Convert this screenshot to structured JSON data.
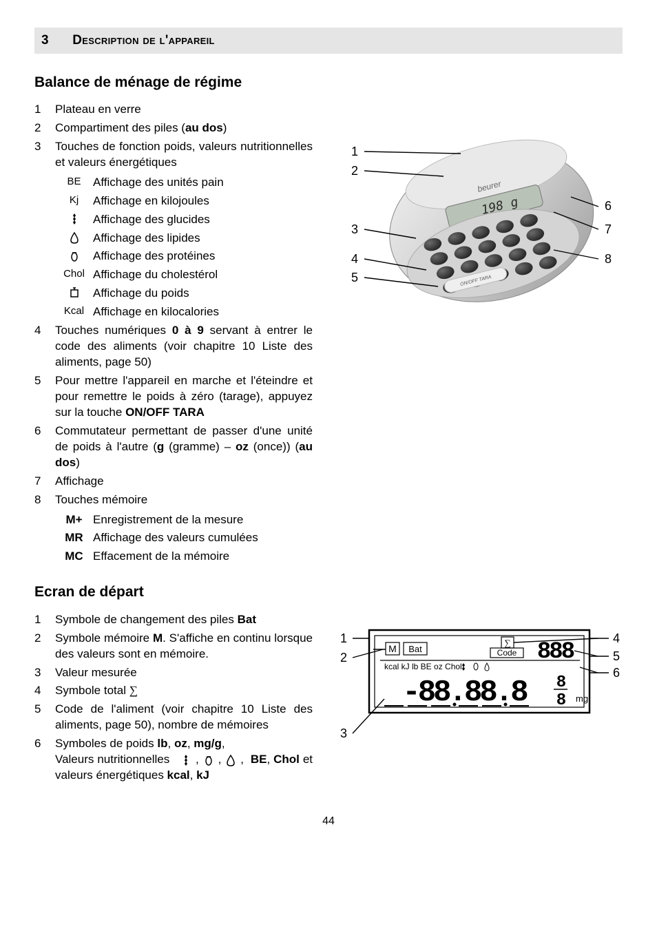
{
  "section": {
    "number": "3",
    "title": "Description de l'appareil"
  },
  "h1": "Balance de ménage de régime",
  "items": [
    {
      "n": "1",
      "text": "Plateau en verre"
    },
    {
      "n": "2",
      "text_html": "Compartiment des piles (<b>au dos</b>)"
    },
    {
      "n": "3",
      "text": "Touches de fonction poids, valeurs nutritionnelles et valeurs énergétiques",
      "sub": [
        {
          "k": "BE",
          "type": "txt",
          "v": "Affichage des unités pain"
        },
        {
          "k": "Kj",
          "type": "txt",
          "v": "Affichage en kilojoules"
        },
        {
          "k": "wheat",
          "type": "ico",
          "v": "Affichage des glucides"
        },
        {
          "k": "drop",
          "type": "ico",
          "v": "Affichage des lipides"
        },
        {
          "k": "oval",
          "type": "ico",
          "v": "Affichage des protéines"
        },
        {
          "k": "Chol",
          "type": "txt",
          "v": "Affichage du cholestérol"
        },
        {
          "k": "scale",
          "type": "ico",
          "v": "Affichage du poids"
        },
        {
          "k": "Kcal",
          "type": "txt",
          "v": "Affichage en kilocalories"
        }
      ]
    },
    {
      "n": "4",
      "text_html": "Touches numériques <b>0 à 9</b> servant à entrer le code des aliments (voir chapitre 10 Liste des aliments, page 50)"
    },
    {
      "n": "5",
      "text_html": "Pour mettre l'appareil en marche et l'éteindre et pour remettre le poids à zéro (tarage), appuyez sur la touche <b>ON/OFF TARA</b>"
    },
    {
      "n": "6",
      "text_html": "Commutateur permettant de passer d'une unité de poids à l'autre (<b>g</b> (gramme) – <b>oz</b> (once)) (<b>au dos</b>)"
    },
    {
      "n": "7",
      "text": "Affichage"
    },
    {
      "n": "8",
      "text": "Touches mémoire",
      "sub": [
        {
          "k": "M+",
          "type": "bold",
          "v": "Enregistrement de la mesure"
        },
        {
          "k": "MR",
          "type": "bold",
          "v": "Affichage des valeurs cumulées"
        },
        {
          "k": "MC",
          "type": "bold",
          "v": "Effacement de la mémoire"
        }
      ]
    }
  ],
  "h2": "Ecran de départ",
  "items2": [
    {
      "n": "1",
      "text_html": "Symbole de changement des piles <b>Bat</b>"
    },
    {
      "n": "2",
      "text_html": "Symbole mémoire <b>M</b>. S'affiche en continu lorsque des valeurs sont en mémoire."
    },
    {
      "n": "3",
      "text": "Valeur mesurée"
    },
    {
      "n": "4",
      "text_html": "Symbole total <span style='font-family:serif'>∑</span>"
    },
    {
      "n": "5",
      "text": "Code de l'aliment (voir chapitre 10 Liste des aliments, page 50), nombre de mémoires"
    },
    {
      "n": "6",
      "text_html": "Symboles de poids <b>lb</b>, <b>oz</b>, <b>mg/g</b>,<br>Valeurs nutritionnelles &nbsp;&nbsp;<svg class='ico' viewBox='0 0 18 18'><path d='M9 1 L7 4 L9 7 L11 4 Z M9 6 L7 9 L9 12 L11 9 Z M9 11 L7 14 L9 17 L11 14 Z' fill='#000'/></svg> , <svg class='ico' viewBox='0 0 18 18'><ellipse cx='9' cy='10' rx='4' ry='6' fill='none' stroke='#000' stroke-width='1.5'/><line x1='6' y1='4' x2='12' y2='4' stroke='#000' stroke-width='1.5'/></svg> , <svg class='ico' viewBox='0 0 18 18'><path d='M9 2 C5 8 4 11 4 13 C4 16 6 17 9 17 C12 17 14 16 14 13 C14 11 13 8 9 2 Z' fill='none' stroke='#000' stroke-width='1.5'/></svg> , &nbsp;<b>BE</b>, <b>Chol</b> et valeurs énergétiques <b>kcal</b>, <b>kJ</b>"
    }
  ],
  "device_labels_left": [
    "1",
    "2",
    "3",
    "4",
    "5"
  ],
  "device_labels_right": [
    "6",
    "7",
    "8"
  ],
  "device_brand": "beurer",
  "device_display": "198 g",
  "device_tara": "ON/OFF TARA",
  "lcd": {
    "m": "M",
    "bat": "Bat",
    "sigma": "∑",
    "code": "Code",
    "row2": "kcal  kJ   lb      BE oz Chol",
    "code_digits": "888",
    "main_digits": "-88.88.8",
    "unit_top": "8",
    "unit_bot": "8",
    "mg": "mg"
  },
  "lcd_labels_left": [
    "1",
    "2",
    "3"
  ],
  "lcd_labels_right": [
    "4",
    "5",
    "6"
  ],
  "page": "44",
  "colors": {
    "bar_bg": "#e5e5e5",
    "device_light": "#e0e0e0",
    "device_dark": "#8a8a8a",
    "lcd_bg": "#ffffff",
    "line": "#000000"
  }
}
